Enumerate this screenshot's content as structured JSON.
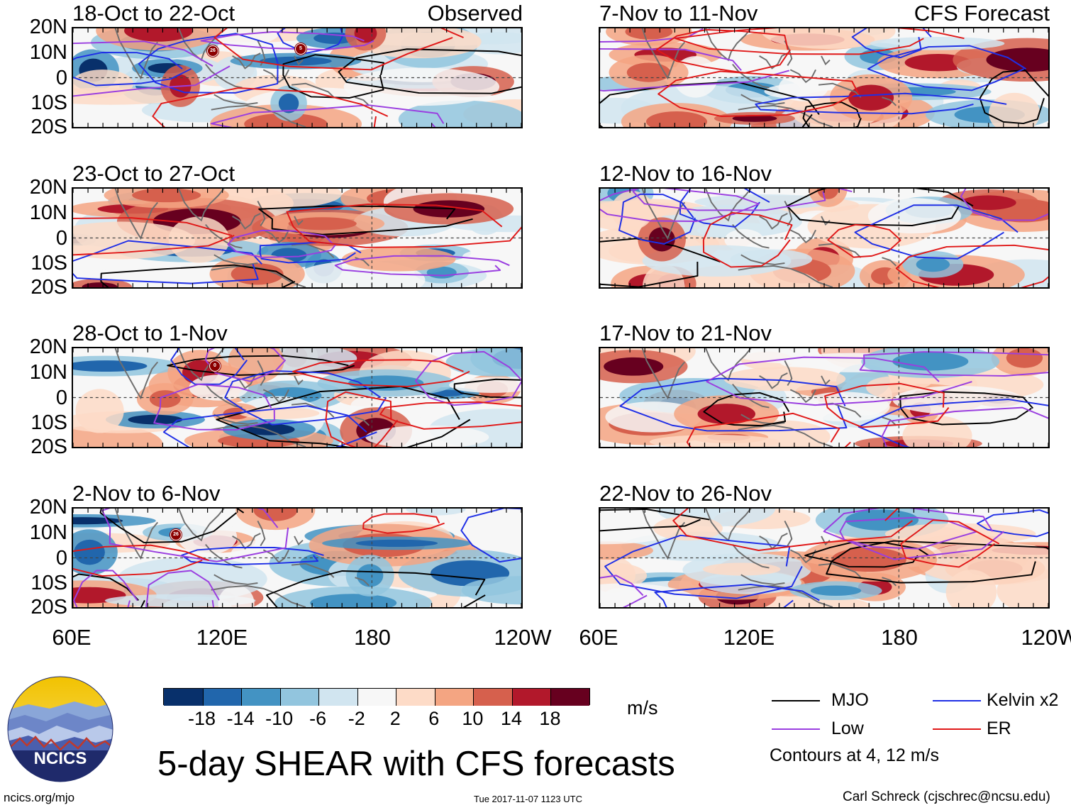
{
  "colors": {
    "mjo": "#000000",
    "kelvin": "#1f2fe6",
    "low": "#9a3ee0",
    "er": "#e01818",
    "coast": "#6f6f6f"
  },
  "panels": [
    {
      "title": "18-Oct to 22-Oct",
      "tag": "Observed"
    },
    {
      "title": "7-Nov to 11-Nov",
      "tag": "CFS Forecast"
    },
    {
      "title": "23-Oct to 27-Oct",
      "tag": ""
    },
    {
      "title": "12-Nov to 16-Nov",
      "tag": ""
    },
    {
      "title": "28-Oct to 1-Nov",
      "tag": ""
    },
    {
      "title": "17-Nov to 21-Nov",
      "tag": ""
    },
    {
      "title": "2-Nov to 6-Nov",
      "tag": ""
    },
    {
      "title": "22-Nov to 26-Nov",
      "tag": ""
    }
  ],
  "lat_labels": [
    "20N",
    "10N",
    "0",
    "10S",
    "20S"
  ],
  "lon_labels": [
    "60E",
    "120E",
    "180",
    "120W"
  ],
  "colorbar": {
    "colors": [
      "#08306b",
      "#2166ac",
      "#4393c3",
      "#92c5de",
      "#d1e5f0",
      "#f7f7f7",
      "#fddbc7",
      "#f4a582",
      "#d6604d",
      "#b2182b",
      "#67001f"
    ],
    "labels": [
      "-18",
      "-14",
      "-10",
      "-6",
      "-2",
      "2",
      "6",
      "10",
      "14",
      "18"
    ],
    "units": "m/s"
  },
  "legend": {
    "mjo": "MJO",
    "low": "Low",
    "kelvin": "Kelvin x2",
    "er": "ER",
    "contours_note": "Contours at 4, 12 m/s"
  },
  "main_title": "5-day SHEAR with CFS forecasts",
  "logo_text": "NCICS",
  "footer": {
    "website": "ncics.org/mjo",
    "timestamp": "Tue 2017-11-07 1123 UTC",
    "credit": "Carl Schreck (cjschrec@ncsu.edu)"
  },
  "storm_markers": [
    "26",
    "5",
    "0",
    "26"
  ]
}
